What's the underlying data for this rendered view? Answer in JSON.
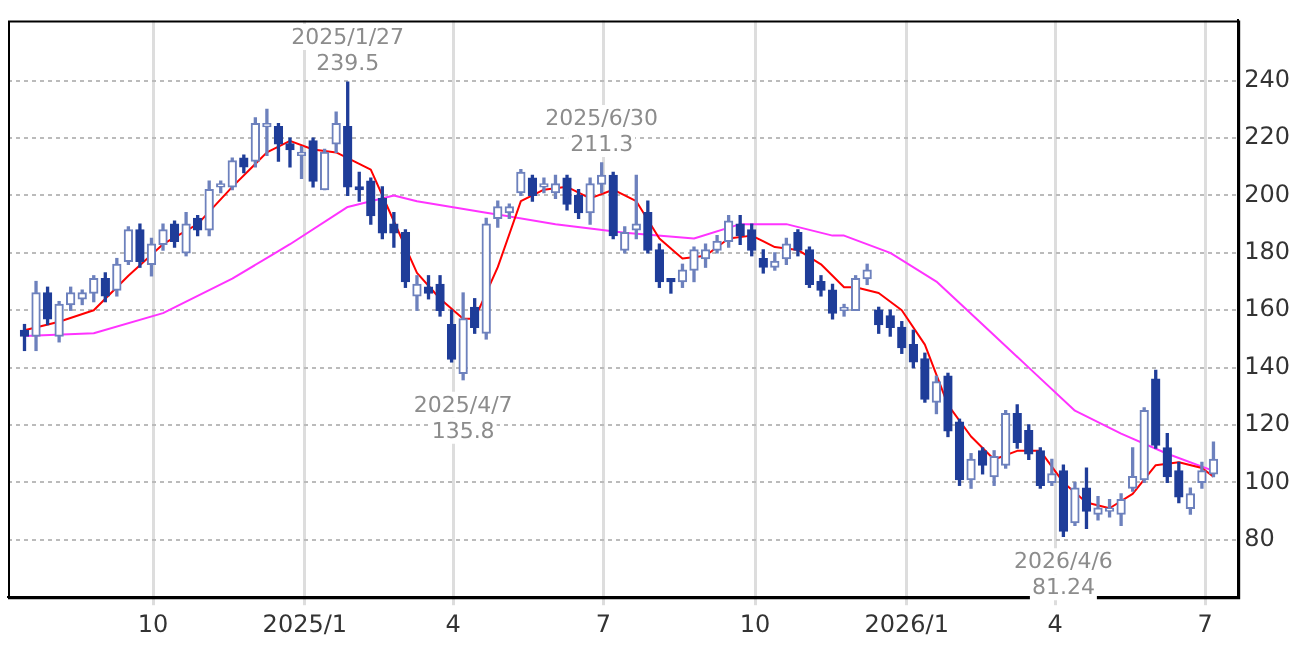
{
  "chart_data": {
    "type": "candlestick",
    "colors": [
      "#1f3d99",
      "#6d81bd",
      "#1f3d99",
      "#6d81bd",
      "#6d81bd",
      "#6d81bd",
      "#6d81bd",
      "#1f3d99",
      "#6d81bd",
      "#6d81bd",
      "#1f3d99",
      "#6d81bd",
      "#6d81bd",
      "#1f3d99",
      "#6d81bd",
      "#1f3d99",
      "#6d81bd",
      "#6d81bd",
      "#6d81bd",
      "#1f3d99",
      "#6d81bd",
      "#6d81bd",
      "#1f3d99",
      "#1f3d99",
      "#6d81bd",
      "#1f3d99",
      "#6d81bd",
      "#6d81bd",
      "#1f3d99",
      "#1f3d99",
      "#1f3d99",
      "#1f3d99",
      "#1f3d99",
      "#1f3d99",
      "#6d81bd",
      "#1f3d99",
      "#1f3d99",
      "#1f3d99",
      "#6d81bd",
      "#1f3d99",
      "#6d81bd",
      "#6d81bd",
      "#6d81bd",
      "#6d81bd",
      "#1f3d99",
      "#6d81bd",
      "#6d81bd",
      "#1f3d99",
      "#1f3d99",
      "#6d81bd",
      "#6d81bd",
      "#1f3d99",
      "#6d81bd",
      "#6d81bd",
      "#1f3d99",
      "#1f3d99",
      "#1f3d99",
      "#6d81bd",
      "#6d81bd",
      "#6d81bd",
      "#6d81bd",
      "#6d81bd",
      "#1f3d99",
      "#1f3d99",
      "#1f3d99",
      "#6d81bd",
      "#6d81bd",
      "#1f3d99",
      "#1f3d99",
      "#1f3d99",
      "#1f3d99",
      "#6d81bd",
      "#6d81bd",
      "#6d81bd",
      "#1f3d99",
      "#1f3d99",
      "#1f3d99",
      "#1f3d99",
      "#1f3d99",
      "#6d81bd",
      "#1f3d99",
      "#1f3d99",
      "#6d81bd",
      "#1f3d99",
      "#6d81bd",
      "#6d81bd",
      "#1f3d99",
      "#1f3d99",
      "#1f3d99",
      "#6d81bd",
      "#1f3d99",
      "#6d81bd",
      "#1f3d99",
      "#6d81bd",
      "#6d81bd",
      "#6d81bd",
      "#6d81bd",
      "#6d81bd",
      "#1f3d99",
      "#1f3d99",
      "#1f3d99",
      "#6d81bd",
      "#6d81bd",
      "#6d81bd"
    ],
    "x": [
      "2024-07-15",
      "2024-07-22",
      "2024-07-29",
      "2024-08-05",
      "2024-08-12",
      "2024-08-19",
      "2024-08-26",
      "2024-09-02",
      "2024-09-09",
      "2024-09-16",
      "2024-09-23",
      "2024-09-30",
      "2024-10-07",
      "2024-10-14",
      "2024-10-21",
      "2024-10-28",
      "2024-11-04",
      "2024-11-11",
      "2024-11-18",
      "2024-11-25",
      "2024-12-02",
      "2024-12-09",
      "2024-12-16",
      "2024-12-23",
      "2024-12-30",
      "2025-01-06",
      "2025-01-13",
      "2025-01-20",
      "2025-01-27",
      "2025-02-03",
      "2025-02-10",
      "2025-02-17",
      "2025-02-24",
      "2025-03-03",
      "2025-03-10",
      "2025-03-17",
      "2025-03-24",
      "2025-03-31",
      "2025-04-07",
      "2025-04-14",
      "2025-04-21",
      "2025-04-28",
      "2025-05-05",
      "2025-05-12",
      "2025-05-19",
      "2025-05-26",
      "2025-06-02",
      "2025-06-09",
      "2025-06-16",
      "2025-06-23",
      "2025-06-30",
      "2025-07-07",
      "2025-07-14",
      "2025-07-21",
      "2025-07-28",
      "2025-08-04",
      "2025-08-11",
      "2025-08-18",
      "2025-08-25",
      "2025-09-01",
      "2025-09-08",
      "2025-09-15",
      "2025-09-22",
      "2025-09-29",
      "2025-10-06",
      "2025-10-13",
      "2025-10-20",
      "2025-10-27",
      "2025-11-03",
      "2025-11-10",
      "2025-11-17",
      "2025-11-24",
      "2025-12-01",
      "2025-12-08",
      "2025-12-15",
      "2025-12-22",
      "2025-12-29",
      "2026-01-05",
      "2026-01-12",
      "2026-01-19",
      "2026-01-26",
      "2026-02-02",
      "2026-02-09",
      "2026-02-16",
      "2026-02-23",
      "2026-03-02",
      "2026-03-09",
      "2026-03-16",
      "2026-03-23",
      "2026-03-30",
      "2026-04-06",
      "2026-04-13",
      "2026-04-20",
      "2026-04-27",
      "2026-05-04",
      "2026-05-11",
      "2026-05-18",
      "2026-05-25",
      "2026-06-01",
      "2026-06-08",
      "2026-06-15",
      "2026-06-22",
      "2026-06-29",
      "2026-07-06"
    ],
    "ohlc": [
      [
        153,
        155,
        146,
        151
      ],
      [
        151,
        170,
        146,
        166
      ],
      [
        166,
        168,
        155,
        157
      ],
      [
        151,
        163,
        149,
        162
      ],
      [
        162,
        168,
        160,
        166
      ],
      [
        164,
        167,
        162,
        166
      ],
      [
        166,
        172,
        163,
        171
      ],
      [
        171,
        173,
        163,
        165
      ],
      [
        167,
        178,
        165,
        176
      ],
      [
        177,
        189,
        176,
        188
      ],
      [
        188,
        190,
        175,
        177
      ],
      [
        176,
        185,
        172,
        183
      ],
      [
        183,
        190,
        181,
        188
      ],
      [
        190,
        191,
        182,
        184
      ],
      [
        180,
        194,
        179,
        190
      ],
      [
        192,
        193,
        186,
        188
      ],
      [
        188,
        205,
        186,
        202
      ],
      [
        203,
        205,
        201,
        204
      ],
      [
        203,
        213,
        202,
        212
      ],
      [
        213,
        214,
        208,
        210
      ],
      [
        212,
        227,
        210,
        225
      ],
      [
        224,
        230,
        214,
        225
      ],
      [
        224,
        225,
        212,
        218
      ],
      [
        218,
        220,
        210,
        216
      ],
      [
        214,
        217,
        206,
        215
      ],
      [
        219,
        220,
        203,
        205
      ],
      [
        202,
        216,
        202,
        215
      ],
      [
        218,
        229,
        215,
        225
      ],
      [
        224,
        239.5,
        200,
        203
      ],
      [
        203,
        208,
        198,
        202
      ],
      [
        205,
        206,
        190,
        193
      ],
      [
        199,
        203,
        185,
        187
      ],
      [
        190,
        194,
        182,
        187
      ],
      [
        187,
        188,
        168,
        170
      ],
      [
        165,
        172,
        160,
        169
      ],
      [
        168,
        172,
        164,
        166
      ],
      [
        169,
        172,
        158,
        160
      ],
      [
        155,
        160,
        142,
        143
      ],
      [
        138,
        166,
        135.8,
        157
      ],
      [
        161,
        164,
        152,
        154
      ],
      [
        152,
        192,
        150,
        190
      ],
      [
        192,
        198,
        189,
        196
      ],
      [
        194,
        197,
        192,
        196
      ],
      [
        201,
        209,
        200,
        208
      ],
      [
        206,
        207,
        198,
        200
      ],
      [
        203,
        206,
        201,
        204
      ],
      [
        201,
        207,
        199,
        204
      ],
      [
        206,
        207,
        195,
        197
      ],
      [
        200,
        202,
        192,
        194
      ],
      [
        194,
        206,
        190,
        204
      ],
      [
        204,
        211.3,
        201,
        207
      ],
      [
        207,
        208,
        185,
        186
      ],
      [
        181,
        189,
        180,
        187
      ],
      [
        188,
        207,
        185,
        190
      ],
      [
        194,
        198,
        180,
        181
      ],
      [
        181,
        183,
        168,
        170
      ],
      [
        171,
        171,
        166,
        170
      ],
      [
        170,
        176,
        168,
        174
      ],
      [
        174,
        182,
        170,
        181
      ],
      [
        178,
        183,
        175,
        181
      ],
      [
        181,
        186,
        180,
        184
      ],
      [
        184,
        193,
        182,
        191
      ],
      [
        190,
        193,
        183,
        186
      ],
      [
        188,
        190,
        179,
        181
      ],
      [
        178,
        181,
        173,
        175
      ],
      [
        175,
        180,
        174,
        177
      ],
      [
        178,
        185,
        176,
        183
      ],
      [
        187,
        188,
        179,
        181
      ],
      [
        181,
        182,
        168,
        169
      ],
      [
        170,
        172,
        165,
        167
      ],
      [
        167,
        169,
        157,
        159
      ],
      [
        160,
        162,
        158,
        161
      ],
      [
        160,
        172,
        160,
        171
      ],
      [
        171,
        176,
        169,
        174
      ],
      [
        160,
        161,
        152,
        155
      ],
      [
        158,
        160,
        151,
        154
      ],
      [
        154,
        156,
        145,
        147
      ],
      [
        148,
        153,
        140,
        142
      ],
      [
        143,
        145,
        128,
        129
      ],
      [
        128,
        137,
        124,
        135
      ],
      [
        137,
        138,
        116,
        118
      ],
      [
        121,
        122,
        99,
        101
      ],
      [
        101,
        110,
        98,
        108
      ],
      [
        111,
        112,
        103,
        106
      ],
      [
        102,
        111,
        99,
        109
      ],
      [
        106,
        125,
        105,
        124
      ],
      [
        124,
        127,
        112,
        114
      ],
      [
        118,
        120,
        108,
        110
      ],
      [
        111,
        112,
        98,
        99
      ],
      [
        100,
        108,
        99,
        103
      ],
      [
        104,
        106,
        81.24,
        83
      ],
      [
        86,
        100,
        85,
        98
      ],
      [
        98,
        105,
        84,
        90
      ],
      [
        89,
        95,
        87,
        91
      ],
      [
        90,
        94,
        88,
        91
      ],
      [
        89,
        96,
        85,
        94
      ],
      [
        98,
        112,
        97,
        102
      ],
      [
        101,
        126,
        100,
        125
      ],
      [
        136,
        139,
        112,
        113
      ],
      [
        112,
        117,
        100,
        102
      ],
      [
        104,
        107,
        93,
        95
      ],
      [
        91,
        98,
        89,
        96
      ],
      [
        100,
        107,
        98,
        104
      ],
      [
        103,
        114,
        102,
        108
      ]
    ],
    "series": [
      {
        "type": "line",
        "color": "#ff0000",
        "x": [
          "2024-07-15",
          "2024-08-05",
          "2024-08-26",
          "2024-09-16",
          "2024-10-07",
          "2024-10-28",
          "2024-11-18",
          "2024-12-09",
          "2024-12-23",
          "2025-01-06",
          "2025-01-20",
          "2025-02-10",
          "2025-02-24",
          "2025-03-10",
          "2025-03-24",
          "2025-04-07",
          "2025-04-14",
          "2025-04-28",
          "2025-05-12",
          "2025-05-26",
          "2025-06-09",
          "2025-06-23",
          "2025-07-07",
          "2025-07-21",
          "2025-08-04",
          "2025-08-18",
          "2025-09-01",
          "2025-09-15",
          "2025-09-29",
          "2025-10-13",
          "2025-10-27",
          "2025-11-10",
          "2025-11-24",
          "2025-12-01",
          "2025-12-15",
          "2025-12-29",
          "2026-01-12",
          "2026-01-26",
          "2026-02-09",
          "2026-02-23",
          "2026-03-09",
          "2026-03-23",
          "2026-04-06",
          "2026-04-20",
          "2026-05-04",
          "2026-05-18",
          "2026-06-01",
          "2026-06-15",
          "2026-06-29",
          "2026-07-06"
        ],
        "values": [
          153,
          156,
          160,
          172,
          183,
          190,
          203,
          215,
          219,
          216,
          215,
          209,
          191,
          173,
          164,
          157,
          157,
          175,
          198,
          202,
          203,
          199,
          202,
          198,
          185,
          178,
          179,
          185,
          186,
          182,
          181,
          176,
          168,
          168,
          166,
          160,
          148,
          127,
          116,
          108,
          111,
          111,
          100,
          93,
          91,
          96,
          106,
          107,
          105,
          102
        ]
      },
      {
        "type": "line",
        "color": "#ff33ff",
        "x": [
          "2024-07-15",
          "2024-08-26",
          "2024-10-07",
          "2024-11-18",
          "2024-12-23",
          "2025-01-27",
          "2025-02-24",
          "2025-03-10",
          "2025-04-21",
          "2025-06-02",
          "2025-07-14",
          "2025-08-25",
          "2025-09-22",
          "2025-10-20",
          "2025-11-17",
          "2025-11-24",
          "2025-12-22",
          "2026-01-19",
          "2026-02-16",
          "2026-03-16",
          "2026-04-13",
          "2026-05-11",
          "2026-06-08",
          "2026-07-06"
        ],
        "values": [
          151,
          152,
          159,
          171,
          183,
          196,
          200,
          198,
          194,
          190,
          187,
          185,
          190,
          190,
          186,
          186,
          180,
          170,
          155,
          140,
          125,
          117,
          110,
          104
        ]
      }
    ],
    "xlim": [
      "2024-07-05",
      "2026-07-21"
    ],
    "xticks": [
      {
        "value": "2024-10-01",
        "label": "10"
      },
      {
        "value": "2025-01-01",
        "label": "2025/1"
      },
      {
        "value": "2025-04-01",
        "label": "4"
      },
      {
        "value": "2025-07-01",
        "label": "7"
      },
      {
        "value": "2025-10-01",
        "label": "10"
      },
      {
        "value": "2026-01-01",
        "label": "2026/1"
      },
      {
        "value": "2026-04-01",
        "label": "4"
      },
      {
        "value": "2026-07-01",
        "label": "7"
      }
    ],
    "ylim": [
      60,
      261
    ],
    "yticks": [
      80,
      100,
      120,
      140,
      160,
      180,
      200,
      220,
      240
    ],
    "grid": true,
    "legend": false,
    "annotations": [
      {
        "text": "2025/1/27\n239.5",
        "x": "2025-01-27",
        "y": 239.5
      },
      {
        "text": "2025/4/7\n135.8",
        "x": "2025-04-07",
        "y": 135.8
      },
      {
        "text": "2025/6/30\n211.3",
        "x": "2025-06-30",
        "y": 211.3
      },
      {
        "text": "2026/4/6\n81.24",
        "x": "2026-04-06",
        "y": 81.24
      }
    ]
  }
}
